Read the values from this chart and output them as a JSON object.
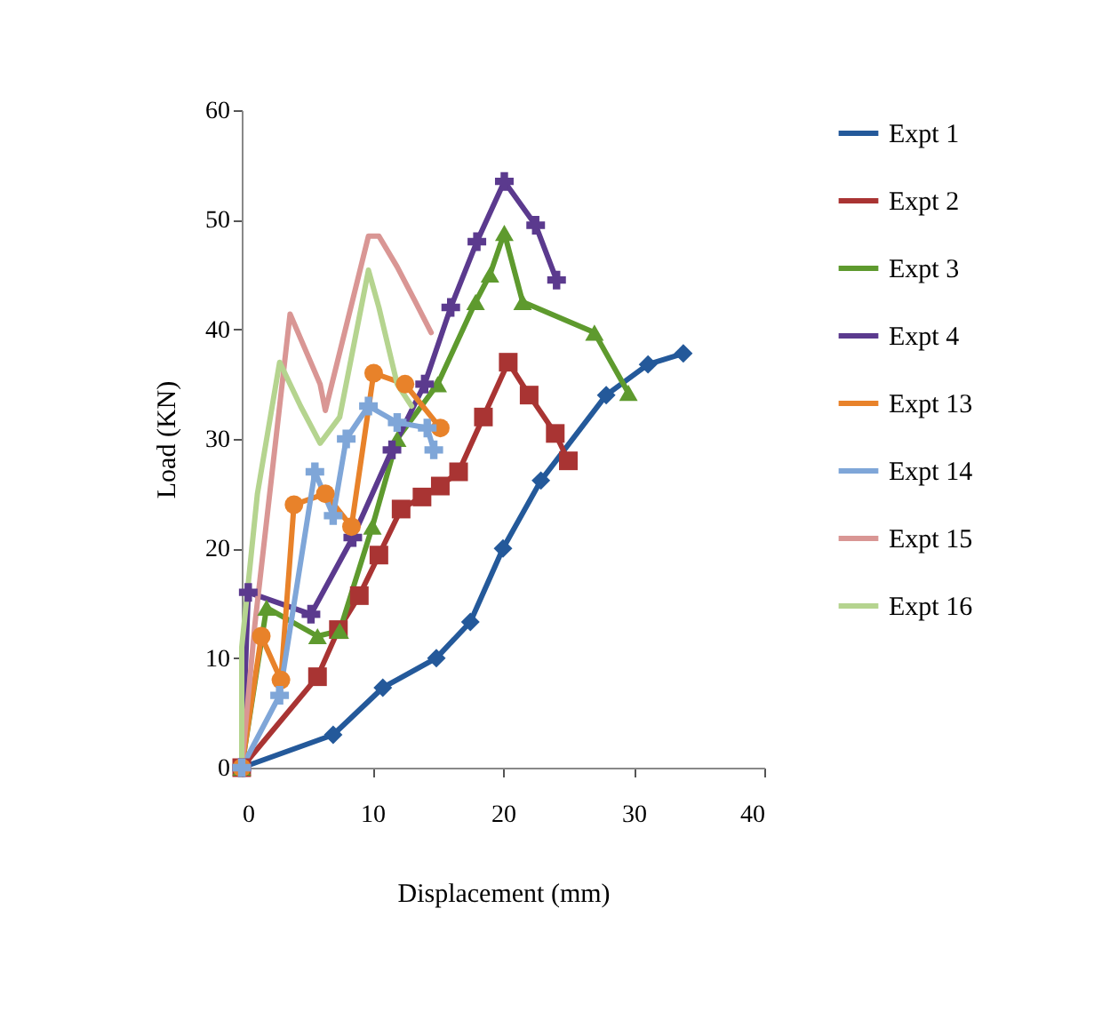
{
  "chart_data": {
    "type": "line",
    "xlabel": "Displacement (mm)",
    "ylabel": "Load (KN)",
    "xlim": [
      0,
      40
    ],
    "xticks": [
      0,
      10,
      20,
      30,
      40
    ],
    "ylim": [
      0,
      60
    ],
    "yticks": [
      0,
      10,
      20,
      30,
      40,
      50,
      60
    ],
    "grid": false,
    "legend": "right",
    "series": [
      {
        "name": "Expt 1",
        "color": "#24599a",
        "marker": "diamond",
        "x": [
          0,
          7,
          10.8,
          14.9,
          17.5,
          20,
          22.9,
          27.9,
          31.1,
          33.8
        ],
        "values": [
          0,
          3,
          7.3,
          10,
          13.3,
          20,
          26.2,
          34,
          36.8,
          37.8
        ]
      },
      {
        "name": "Expt 2",
        "color": "#a93433",
        "marker": "square",
        "x": [
          0,
          5.8,
          7.4,
          9,
          10.5,
          12.2,
          13.8,
          15.2,
          16.6,
          18.5,
          20.4,
          22,
          24,
          25
        ],
        "values": [
          0,
          8.3,
          12.6,
          15.7,
          19.4,
          23.6,
          24.7,
          25.7,
          27,
          32,
          37,
          34,
          30.5,
          28
        ]
      },
      {
        "name": "Expt 3",
        "color": "#5e9a2e",
        "marker": "triangle",
        "x": [
          0,
          1.9,
          5.8,
          7.5,
          10,
          11.9,
          15,
          17.9,
          19,
          20.1,
          21.5,
          27,
          29.6
        ],
        "values": [
          0,
          14.6,
          12,
          12.5,
          22,
          30,
          35,
          42.5,
          45,
          48.8,
          42.5,
          39.7,
          34.2
        ]
      },
      {
        "name": "Expt 4",
        "color": "#5b3a8e",
        "marker": "cross",
        "x": [
          0,
          0.5,
          5.3,
          8.5,
          11.5,
          14,
          16,
          18,
          20.1,
          22.5,
          24.1
        ],
        "values": [
          0,
          16,
          14,
          21,
          29,
          35,
          42,
          48,
          53.5,
          49.5,
          44.5
        ]
      },
      {
        "name": "Expt 13",
        "color": "#e8822a",
        "marker": "circle",
        "x": [
          0,
          1.5,
          3,
          4,
          6.4,
          8.4,
          10.1,
          12.5,
          15.2
        ],
        "values": [
          0,
          12,
          8,
          24,
          25,
          22,
          36,
          35,
          31
        ]
      },
      {
        "name": "Expt 14",
        "color": "#7fa6d8",
        "marker": "cross",
        "x": [
          0,
          2.9,
          5.6,
          7,
          8,
          9.7,
          11.9,
          14.2,
          14.7
        ],
        "values": [
          0,
          6.6,
          27,
          23,
          30,
          33,
          31.5,
          31,
          29
        ]
      },
      {
        "name": "Expt 15",
        "color": "#d99694",
        "marker": "none",
        "x": [
          0,
          1,
          3.7,
          6,
          6.4,
          9.7,
          10.5,
          11.9,
          13.3,
          14.5
        ],
        "values": [
          0,
          13,
          41.4,
          35,
          32.6,
          48.5,
          48.5,
          45.7,
          42.5,
          39.7
        ]
      },
      {
        "name": "Expt 16",
        "color": "#b5d48f",
        "marker": "none",
        "x": [
          0,
          0,
          1.2,
          2.9,
          4.5,
          6,
          7.5,
          9.7,
          10.5,
          11.9,
          13
        ],
        "values": [
          0,
          11,
          25,
          37,
          33,
          29.6,
          32,
          45.4,
          42,
          35,
          33
        ]
      }
    ]
  }
}
